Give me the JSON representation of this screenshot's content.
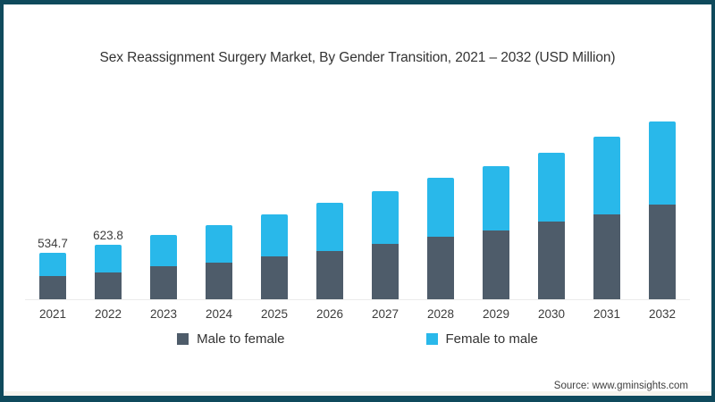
{
  "title": "Sex Reassignment Surgery Market, By Gender Transition, 2021 – 2032 (USD Million)",
  "source_note": "Source: www.gminsights.com",
  "colors": {
    "frame": "#0f4a5c",
    "male_to_female": "#4e5c6a",
    "female_to_male": "#29b8ea",
    "axis_line": "#ebebeb"
  },
  "legend": [
    {
      "label": "Male to female",
      "color": "#4e5c6a"
    },
    {
      "label": "Female to male",
      "color": "#29b8ea"
    }
  ],
  "chart_data": {
    "type": "bar",
    "stacked": true,
    "title": "Sex Reassignment Surgery Market, By Gender Transition, 2021 – 2032 (USD Million)",
    "xlabel": "",
    "ylabel": "USD Million",
    "ylim": [
      0,
      2100
    ],
    "grid": false,
    "legend_position": "bottom",
    "categories": [
      "2021",
      "2022",
      "2023",
      "2024",
      "2025",
      "2026",
      "2027",
      "2028",
      "2029",
      "2030",
      "2031",
      "2032"
    ],
    "series": [
      {
        "name": "Male to female",
        "color": "#4e5c6a",
        "values": [
          263.9,
          309.9,
          373,
          419,
          486,
          554,
          634,
          715,
          790,
          884,
          972,
          1080
        ]
      },
      {
        "name": "Female to male",
        "color": "#29b8ea",
        "values": [
          270.8,
          313.9,
          358,
          425,
          483,
          547,
          596,
          668,
          733,
          793,
          882,
          947
        ]
      }
    ],
    "totals": [
      534.7,
      623.8,
      731,
      844,
      969,
      1101,
      1230,
      1383,
      1523,
      1677,
      1854,
      2027
    ],
    "data_labels": [
      "534.7",
      "623.8",
      "",
      "",
      "",
      "",
      "",
      "",
      "",
      "",
      "",
      ""
    ]
  }
}
